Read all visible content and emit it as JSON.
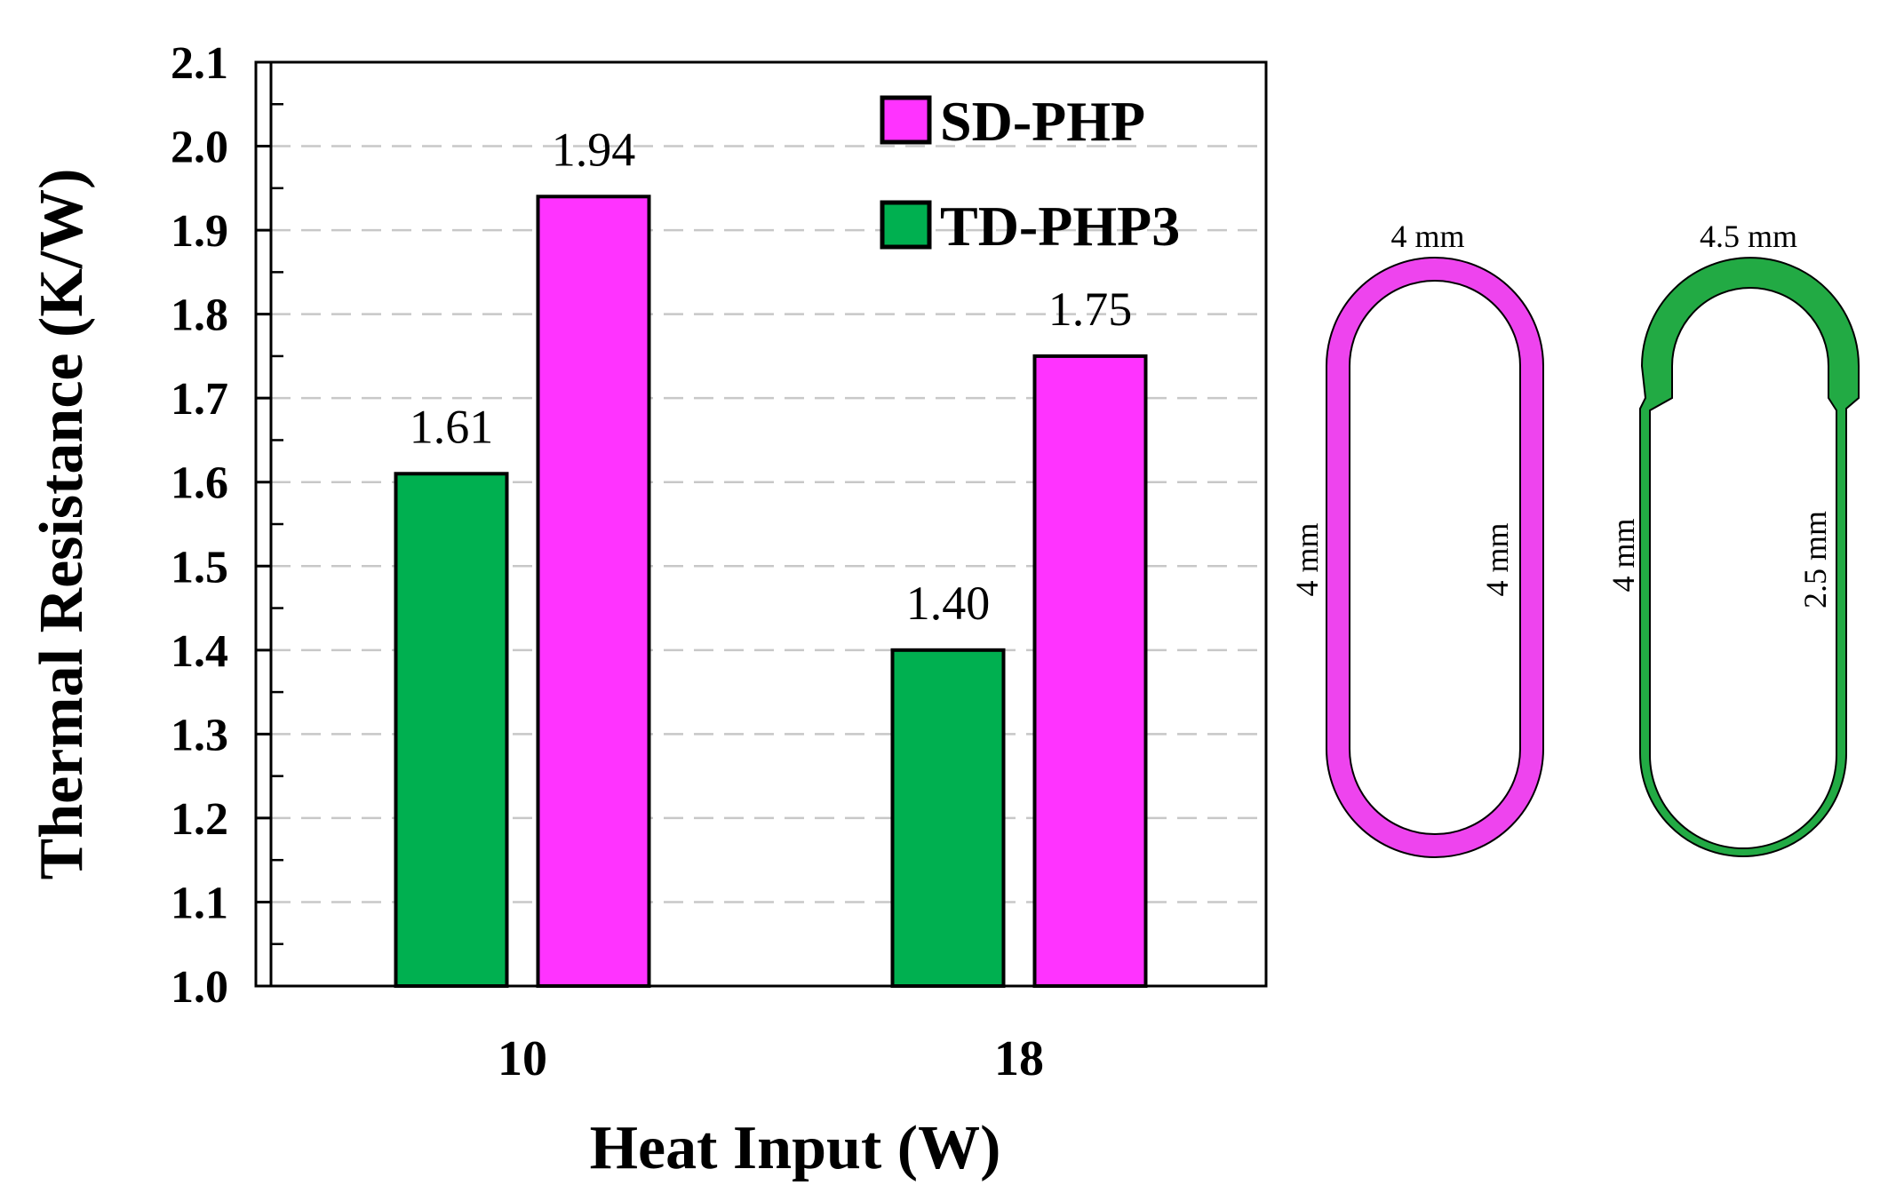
{
  "chart_data": {
    "type": "bar",
    "title": "",
    "xlabel": "Heat Input (W)",
    "ylabel": "Thermal Resistance (K/W)",
    "ylim": [
      1.0,
      2.1
    ],
    "y_ticks": [
      "1.0",
      "1.1",
      "1.2",
      "1.3",
      "1.4",
      "1.5",
      "1.6",
      "1.7",
      "1.8",
      "1.9",
      "2.0",
      "2.1"
    ],
    "grid": "dashed horizontal",
    "legend_position": "top-right",
    "categories": [
      "10",
      "18"
    ],
    "series": [
      {
        "name": "TD-PHP3",
        "color": "#00b050",
        "values": [
          1.61,
          1.4
        ],
        "labels": [
          "1.61",
          "1.40"
        ]
      },
      {
        "name": "SD-PHP",
        "color": "#ff33ff",
        "values": [
          1.94,
          1.75
        ],
        "labels": [
          "1.94",
          "1.75"
        ]
      }
    ]
  },
  "cross_sections": {
    "sd": {
      "name": "SD-PHP",
      "color": "#ee44ee",
      "top_label": "4 mm",
      "left_label": "4 mm",
      "right_label": "4 mm"
    },
    "td": {
      "name": "TD-PHP3",
      "color": "#22aa44",
      "top_label": "4.5 mm",
      "left_label": "4 mm",
      "right_label": "2.5 mm"
    }
  }
}
